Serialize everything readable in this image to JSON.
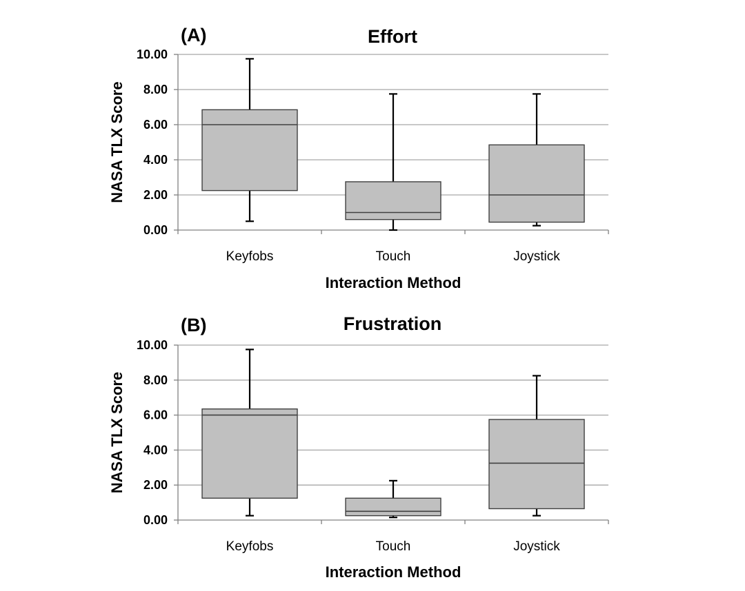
{
  "chart_data": [
    {
      "type": "box",
      "panel": "(A)",
      "title": "Effort",
      "xlabel": "Interaction Method",
      "ylabel": "NASA TLX Score",
      "ylim": [
        0,
        10
      ],
      "yticks": [
        "0.00",
        "2.00",
        "4.00",
        "6.00",
        "8.00",
        "10.00"
      ],
      "grid": true,
      "categories": [
        "Keyfobs",
        "Touch",
        "Joystick"
      ],
      "boxes": [
        {
          "min": 0.5,
          "q1": 2.25,
          "median": 6.0,
          "q3": 6.85,
          "max": 9.75
        },
        {
          "min": 0.0,
          "q1": 0.6,
          "median": 1.0,
          "q3": 2.75,
          "max": 7.75
        },
        {
          "min": 0.25,
          "q1": 0.45,
          "median": 2.0,
          "q3": 4.85,
          "max": 7.75
        }
      ]
    },
    {
      "type": "box",
      "panel": "(B)",
      "title": "Frustration",
      "xlabel": "Interaction Method",
      "ylabel": "NASA TLX Score",
      "ylim": [
        0,
        10
      ],
      "yticks": [
        "0.00",
        "2.00",
        "4.00",
        "6.00",
        "8.00",
        "10.00"
      ],
      "grid": true,
      "categories": [
        "Keyfobs",
        "Touch",
        "Joystick"
      ],
      "boxes": [
        {
          "min": 0.25,
          "q1": 1.25,
          "median": 6.0,
          "q3": 6.35,
          "max": 9.75
        },
        {
          "min": 0.15,
          "q1": 0.25,
          "median": 0.5,
          "q3": 1.25,
          "max": 2.25
        },
        {
          "min": 0.25,
          "q1": 0.65,
          "median": 3.25,
          "q3": 5.75,
          "max": 8.25
        }
      ]
    }
  ],
  "colors": {
    "box_fill": "#c0c0c0",
    "box_stroke": "#404040",
    "grid": "#a6a6a6",
    "axis": "#808080",
    "text": "#000000"
  }
}
